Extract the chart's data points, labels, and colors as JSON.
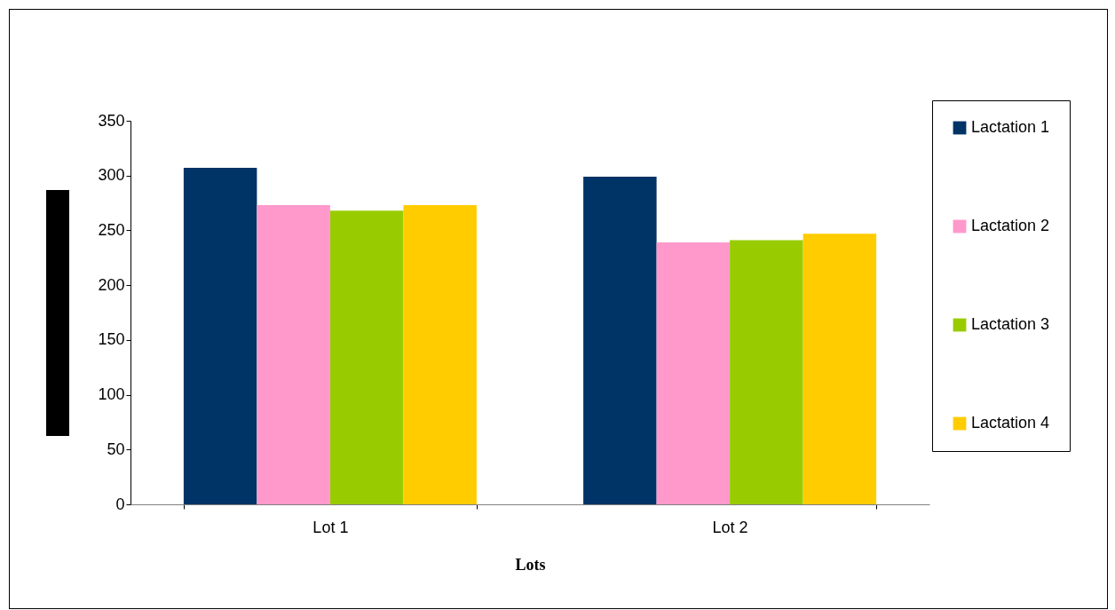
{
  "chart_data": {
    "type": "bar",
    "xlabel": "Lots",
    "categories": [
      "Lot 1",
      "Lot 2"
    ],
    "series": [
      {
        "name": "Lactation 1",
        "color": "#003366",
        "values": [
          307,
          299
        ]
      },
      {
        "name": "Lactation 2",
        "color": "#ff99cc",
        "values": [
          273,
          239
        ]
      },
      {
        "name": "Lactation 3",
        "color": "#99cc00",
        "values": [
          268,
          241
        ]
      },
      {
        "name": "Lactation 4",
        "color": "#ffcc00",
        "values": [
          273,
          247
        ]
      }
    ],
    "ylim": [
      0,
      350
    ],
    "yticks": [
      0,
      50,
      100,
      150,
      200,
      250,
      300,
      350
    ],
    "grid": false,
    "legend": "right"
  }
}
